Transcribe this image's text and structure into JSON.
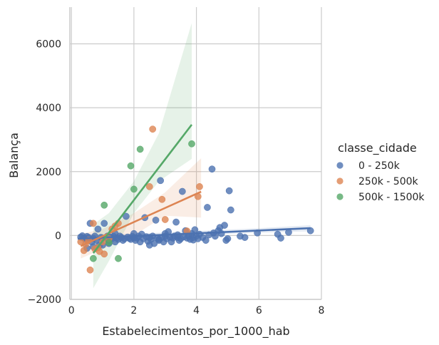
{
  "chart_data": {
    "type": "scatter",
    "xlabel": "Estabelecimentos_por_1000_hab",
    "ylabel": "Balança",
    "xlim": [
      -0.05,
      8.0
    ],
    "ylim": [
      -2000,
      7150
    ],
    "x_ticks": [
      0,
      2,
      4,
      6,
      8
    ],
    "y_ticks": [
      -2000,
      0,
      2000,
      4000,
      6000
    ],
    "y_tick_labels": [
      "−2000",
      "0",
      "2000",
      "4000",
      "6000"
    ],
    "grid": true,
    "legend": {
      "title": "classe_cidade",
      "placement": "right"
    },
    "series": [
      {
        "name": "0 - 250k",
        "color": "#4c72b0",
        "regression": {
          "x": [
            0.2,
            7.65
          ],
          "y": [
            -100,
            230
          ]
        },
        "ci_band": {
          "x": [
            0.2,
            2.0,
            4.0,
            6.0,
            7.65
          ],
          "upper": [
            50,
            50,
            140,
            230,
            320
          ],
          "lower": [
            -250,
            -110,
            20,
            90,
            130
          ]
        },
        "points": [
          [
            0.3,
            -50
          ],
          [
            0.35,
            -10
          ],
          [
            0.4,
            -80
          ],
          [
            0.45,
            -120
          ],
          [
            0.5,
            -30
          ],
          [
            0.55,
            -60
          ],
          [
            0.6,
            380
          ],
          [
            0.65,
            -200
          ],
          [
            0.7,
            -90
          ],
          [
            0.75,
            -20
          ],
          [
            0.8,
            -150
          ],
          [
            0.85,
            200
          ],
          [
            0.9,
            -300
          ],
          [
            0.95,
            -60
          ],
          [
            1.0,
            -100
          ],
          [
            1.05,
            380
          ],
          [
            1.1,
            -80
          ],
          [
            1.15,
            -20
          ],
          [
            1.2,
            -150
          ],
          [
            1.25,
            -50
          ],
          [
            1.3,
            -100
          ],
          [
            1.35,
            -30
          ],
          [
            1.4,
            -200
          ],
          [
            1.45,
            -80
          ],
          [
            1.5,
            -120
          ],
          [
            1.55,
            -20
          ],
          [
            1.6,
            -60
          ],
          [
            1.65,
            -150
          ],
          [
            1.7,
            -100
          ],
          [
            1.75,
            600
          ],
          [
            1.8,
            -50
          ],
          [
            1.85,
            -90
          ],
          [
            1.9,
            -120
          ],
          [
            1.95,
            -30
          ],
          [
            2.0,
            60
          ],
          [
            2.05,
            -150
          ],
          [
            2.1,
            -80
          ],
          [
            2.15,
            -20
          ],
          [
            2.2,
            -200
          ],
          [
            2.25,
            40
          ],
          [
            2.3,
            -100
          ],
          [
            2.35,
            560
          ],
          [
            2.4,
            -40
          ],
          [
            2.45,
            -180
          ],
          [
            2.5,
            -60
          ],
          [
            2.55,
            -120
          ],
          [
            2.6,
            -20
          ],
          [
            2.65,
            -250
          ],
          [
            2.7,
            480
          ],
          [
            2.75,
            -80
          ],
          [
            2.8,
            -150
          ],
          [
            2.85,
            1720
          ],
          [
            2.9,
            -60
          ],
          [
            2.95,
            -200
          ],
          [
            3.0,
            -20
          ],
          [
            3.05,
            -100
          ],
          [
            3.1,
            120
          ],
          [
            3.15,
            -50
          ],
          [
            3.2,
            -200
          ],
          [
            3.25,
            -80
          ],
          [
            3.3,
            -20
          ],
          [
            3.35,
            420
          ],
          [
            3.4,
            -60
          ],
          [
            3.45,
            -150
          ],
          [
            3.5,
            -100
          ],
          [
            3.55,
            1380
          ],
          [
            3.6,
            -40
          ],
          [
            3.65,
            150
          ],
          [
            3.7,
            -80
          ],
          [
            3.75,
            -20
          ],
          [
            3.8,
            -120
          ],
          [
            3.85,
            60
          ],
          [
            3.9,
            -60
          ],
          [
            3.95,
            180
          ],
          [
            4.0,
            -20
          ],
          [
            4.05,
            -100
          ],
          [
            4.1,
            40
          ],
          [
            4.2,
            -60
          ],
          [
            4.3,
            -150
          ],
          [
            4.35,
            880
          ],
          [
            4.4,
            20
          ],
          [
            4.5,
            2080
          ],
          [
            4.55,
            80
          ],
          [
            4.6,
            -20
          ],
          [
            4.7,
            150
          ],
          [
            4.75,
            250
          ],
          [
            4.8,
            60
          ],
          [
            4.9,
            320
          ],
          [
            4.95,
            -150
          ],
          [
            5.0,
            -100
          ],
          [
            5.05,
            1400
          ],
          [
            5.1,
            800
          ],
          [
            5.4,
            -20
          ],
          [
            5.55,
            -60
          ],
          [
            5.95,
            80
          ],
          [
            6.6,
            40
          ],
          [
            6.7,
            -80
          ],
          [
            6.95,
            100
          ],
          [
            7.65,
            150
          ],
          [
            1.0,
            -300
          ],
          [
            1.4,
            60
          ],
          [
            2.0,
            -80
          ],
          [
            2.8,
            -120
          ],
          [
            3.4,
            20
          ],
          [
            0.5,
            -400
          ],
          [
            0.7,
            -350
          ],
          [
            1.2,
            -250
          ],
          [
            2.5,
            -300
          ],
          [
            3.0,
            60
          ],
          [
            3.9,
            -140
          ]
        ]
      },
      {
        "name": "250k - 500k",
        "color": "#dd8452",
        "regression": {
          "x": [
            0.3,
            4.15
          ],
          "y": [
            -330,
            1370
          ]
        },
        "ci_band": {
          "x": [
            0.3,
            1.0,
            2.0,
            3.0,
            4.15
          ],
          "upper": [
            50,
            200,
            700,
            1350,
            2420
          ],
          "lower": [
            -720,
            -420,
            0,
            620,
            560
          ]
        },
        "points": [
          [
            0.3,
            -200
          ],
          [
            0.4,
            -470
          ],
          [
            0.45,
            -280
          ],
          [
            0.55,
            -150
          ],
          [
            0.6,
            -1080
          ],
          [
            0.7,
            380
          ],
          [
            0.75,
            -420
          ],
          [
            0.85,
            -380
          ],
          [
            0.9,
            -500
          ],
          [
            1.0,
            -200
          ],
          [
            1.05,
            -580
          ],
          [
            1.2,
            -100
          ],
          [
            1.3,
            200
          ],
          [
            1.4,
            300
          ],
          [
            1.5,
            380
          ],
          [
            2.5,
            1530
          ],
          [
            2.6,
            3330
          ],
          [
            2.9,
            1130
          ],
          [
            3.0,
            500
          ],
          [
            3.7,
            140
          ],
          [
            4.05,
            1220
          ],
          [
            4.1,
            1530
          ]
        ]
      },
      {
        "name": "500k - 1500k",
        "color": "#55a868",
        "regression": {
          "x": [
            0.7,
            3.85
          ],
          "y": [
            -550,
            3470
          ]
        },
        "ci_band": {
          "x": [
            0.7,
            1.2,
            2.0,
            2.8,
            3.85
          ],
          "upper": [
            350,
            700,
            1700,
            3200,
            6650
          ],
          "lower": [
            -1650,
            -800,
            700,
            1700,
            2400
          ]
        },
        "points": [
          [
            0.7,
            -720
          ],
          [
            1.05,
            950
          ],
          [
            1.2,
            -220
          ],
          [
            1.5,
            -720
          ],
          [
            1.9,
            2180
          ],
          [
            2.0,
            1450
          ],
          [
            2.2,
            2700
          ],
          [
            3.85,
            2870
          ]
        ]
      }
    ]
  }
}
